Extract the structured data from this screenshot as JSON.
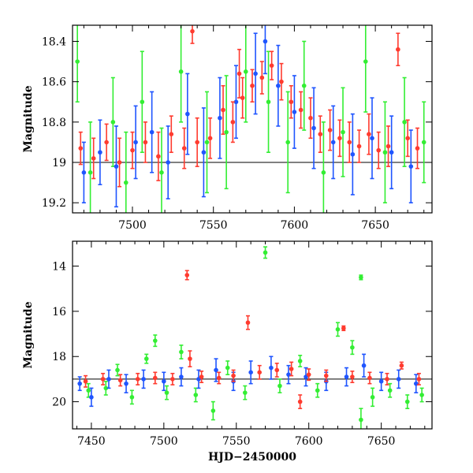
{
  "colors": {
    "red": "#ff3b2f",
    "green": "#33ee33",
    "blue": "#1f55ff",
    "axis": "#000000"
  },
  "chart_data": [
    {
      "type": "scatter",
      "panel": "top",
      "title": "",
      "xlabel": "",
      "ylabel": "Magnitude",
      "xlim": [
        7463,
        7685
      ],
      "ylim": [
        19.25,
        18.32
      ],
      "y_inverted": true,
      "reference_line_y": 19.0,
      "x_ticks": [
        7500,
        7550,
        7600,
        7650
      ],
      "x_tick_labels": [
        "7500",
        "7550",
        "7600",
        "7650"
      ],
      "show_x_tick_labels": true,
      "y_ticks": [
        18.4,
        18.6,
        18.8,
        19.0,
        19.2
      ],
      "y_tick_labels": [
        "18.4",
        "18.6",
        "18.8",
        "19",
        "19.2"
      ],
      "grid": false,
      "legend": "none",
      "series": [
        {
          "color": "red",
          "points": [
            [
              7468,
              18.93,
              0.08
            ],
            [
              7476,
              18.98,
              0.1
            ],
            [
              7484,
              18.9,
              0.09
            ],
            [
              7492,
              19.0,
              0.12
            ],
            [
              7500,
              18.94,
              0.09
            ],
            [
              7508,
              18.9,
              0.1
            ],
            [
              7516,
              18.97,
              0.12
            ],
            [
              7524,
              18.86,
              0.09
            ],
            [
              7532,
              18.93,
              0.1
            ],
            [
              7540,
              18.9,
              0.12
            ],
            [
              7548,
              18.88,
              0.1
            ],
            [
              7556,
              18.74,
              0.12
            ],
            [
              7562,
              18.8,
              0.1
            ],
            [
              7568,
              18.68,
              0.1
            ],
            [
              7574,
              18.62,
              0.08
            ],
            [
              7580,
              18.58,
              0.08
            ],
            [
              7586,
              18.52,
              0.07
            ],
            [
              7592,
              18.6,
              0.09
            ],
            [
              7598,
              18.7,
              0.08
            ],
            [
              7604,
              18.74,
              0.09
            ],
            [
              7610,
              18.78,
              0.1
            ],
            [
              7616,
              18.86,
              0.09
            ],
            [
              7622,
              18.84,
              0.1
            ],
            [
              7628,
              18.88,
              0.09
            ],
            [
              7634,
              18.9,
              0.1
            ],
            [
              7640,
              18.92,
              0.08
            ],
            [
              7646,
              18.86,
              0.1
            ],
            [
              7652,
              18.94,
              0.09
            ],
            [
              7658,
              18.92,
              0.1
            ],
            [
              7664,
              18.44,
              0.08
            ],
            [
              7670,
              18.88,
              0.09
            ],
            [
              7676,
              18.93,
              0.1
            ],
            [
              7537,
              18.35,
              0.06
            ],
            [
              7566,
              18.56,
              0.12
            ]
          ]
        },
        {
          "color": "blue",
          "points": [
            [
              7470,
              19.05,
              0.15
            ],
            [
              7480,
              18.95,
              0.16
            ],
            [
              7490,
              19.02,
              0.2
            ],
            [
              7502,
              18.9,
              0.18
            ],
            [
              7512,
              18.85,
              0.2
            ],
            [
              7522,
              19.0,
              0.18
            ],
            [
              7534,
              18.76,
              0.2
            ],
            [
              7544,
              18.95,
              0.22
            ],
            [
              7554,
              18.78,
              0.2
            ],
            [
              7564,
              18.7,
              0.18
            ],
            [
              7576,
              18.56,
              0.2
            ],
            [
              7582,
              18.4,
              0.16
            ],
            [
              7590,
              18.62,
              0.2
            ],
            [
              7600,
              18.75,
              0.18
            ],
            [
              7612,
              18.83,
              0.2
            ],
            [
              7624,
              18.9,
              0.18
            ],
            [
              7636,
              18.96,
              0.2
            ],
            [
              7648,
              18.88,
              0.2
            ],
            [
              7660,
              18.95,
              0.18
            ],
            [
              7672,
              19.02,
              0.18
            ]
          ]
        },
        {
          "color": "green",
          "points": [
            [
              7466,
              18.5,
              0.2
            ],
            [
              7474,
              19.05,
              0.25
            ],
            [
              7488,
              18.8,
              0.22
            ],
            [
              7496,
              19.1,
              0.25
            ],
            [
              7506,
              18.7,
              0.25
            ],
            [
              7518,
              19.05,
              0.22
            ],
            [
              7530,
              18.55,
              0.25
            ],
            [
              7546,
              18.9,
              0.25
            ],
            [
              7558,
              18.85,
              0.28
            ],
            [
              7570,
              18.55,
              0.25
            ],
            [
              7584,
              18.7,
              0.25
            ],
            [
              7596,
              18.9,
              0.25
            ],
            [
              7606,
              18.62,
              0.22
            ],
            [
              7618,
              19.05,
              0.25
            ],
            [
              7630,
              18.85,
              0.22
            ],
            [
              7644,
              18.5,
              0.25
            ],
            [
              7656,
              18.95,
              0.25
            ],
            [
              7668,
              18.8,
              0.22
            ],
            [
              7680,
              18.9,
              0.2
            ]
          ]
        }
      ]
    },
    {
      "type": "scatter",
      "panel": "bottom",
      "title": "",
      "xlabel": "HJD−2450000",
      "ylabel": "Magnitude",
      "xlim": [
        7437,
        7685
      ],
      "ylim": [
        21.2,
        12.9
      ],
      "y_inverted": true,
      "reference_line_y": 19.0,
      "x_ticks": [
        7450,
        7500,
        7550,
        7600,
        7650
      ],
      "x_tick_labels": [
        "7450",
        "7500",
        "7550",
        "7600",
        "7650"
      ],
      "show_x_tick_labels": true,
      "y_ticks": [
        14,
        16,
        18,
        20
      ],
      "y_tick_labels": [
        "14",
        "16",
        "18",
        "20"
      ],
      "grid": false,
      "legend": "none",
      "series": [
        {
          "color": "red",
          "points": [
            [
              7446,
              19.1,
              0.25
            ],
            [
              7458,
              19.0,
              0.25
            ],
            [
              7470,
              19.05,
              0.25
            ],
            [
              7482,
              19.0,
              0.25
            ],
            [
              7494,
              18.95,
              0.25
            ],
            [
              7506,
              19.0,
              0.25
            ],
            [
              7516,
              14.4,
              0.2
            ],
            [
              7518,
              18.1,
              0.35
            ],
            [
              7526,
              18.9,
              0.25
            ],
            [
              7538,
              18.95,
              0.25
            ],
            [
              7548,
              18.85,
              0.25
            ],
            [
              7558,
              16.5,
              0.3
            ],
            [
              7566,
              18.7,
              0.3
            ],
            [
              7578,
              18.6,
              0.3
            ],
            [
              7588,
              18.55,
              0.3
            ],
            [
              7594,
              20.0,
              0.3
            ],
            [
              7600,
              18.8,
              0.25
            ],
            [
              7612,
              18.85,
              0.25
            ],
            [
              7624,
              16.75,
              0.1
            ],
            [
              7630,
              18.9,
              0.25
            ],
            [
              7642,
              18.95,
              0.25
            ],
            [
              7654,
              19.0,
              0.25
            ],
            [
              7664,
              18.4,
              0.15
            ],
            [
              7676,
              19.0,
              0.25
            ]
          ]
        },
        {
          "color": "blue",
          "points": [
            [
              7442,
              19.2,
              0.3
            ],
            [
              7450,
              19.8,
              0.4
            ],
            [
              7462,
              19.0,
              0.4
            ],
            [
              7474,
              19.2,
              0.4
            ],
            [
              7486,
              19.0,
              0.4
            ],
            [
              7500,
              19.1,
              0.4
            ],
            [
              7512,
              18.9,
              0.4
            ],
            [
              7524,
              19.0,
              0.4
            ],
            [
              7536,
              18.6,
              0.5
            ],
            [
              7548,
              19.1,
              0.4
            ],
            [
              7560,
              18.7,
              0.5
            ],
            [
              7574,
              18.5,
              0.5
            ],
            [
              7586,
              18.8,
              0.4
            ],
            [
              7598,
              18.9,
              0.4
            ],
            [
              7612,
              19.1,
              0.4
            ],
            [
              7626,
              18.9,
              0.4
            ],
            [
              7638,
              18.4,
              0.5
            ],
            [
              7650,
              19.1,
              0.4
            ],
            [
              7662,
              19.0,
              0.4
            ],
            [
              7674,
              19.2,
              0.4
            ]
          ]
        },
        {
          "color": "green",
          "points": [
            [
              7448,
              19.5,
              0.3
            ],
            [
              7460,
              19.4,
              0.3
            ],
            [
              7468,
              18.6,
              0.25
            ],
            [
              7478,
              19.8,
              0.3
            ],
            [
              7488,
              18.1,
              0.2
            ],
            [
              7494,
              17.3,
              0.25
            ],
            [
              7502,
              19.6,
              0.3
            ],
            [
              7512,
              17.8,
              0.3
            ],
            [
              7522,
              19.7,
              0.3
            ],
            [
              7534,
              20.4,
              0.4
            ],
            [
              7544,
              18.5,
              0.3
            ],
            [
              7556,
              19.6,
              0.3
            ],
            [
              7570,
              13.4,
              0.25
            ],
            [
              7580,
              19.3,
              0.3
            ],
            [
              7594,
              18.2,
              0.25
            ],
            [
              7606,
              19.5,
              0.3
            ],
            [
              7620,
              16.8,
              0.3
            ],
            [
              7630,
              17.6,
              0.3
            ],
            [
              7636,
              14.5,
              0.1
            ],
            [
              7636,
              20.8,
              0.5
            ],
            [
              7644,
              19.8,
              0.4
            ],
            [
              7656,
              19.5,
              0.3
            ],
            [
              7668,
              20.0,
              0.3
            ],
            [
              7678,
              19.7,
              0.3
            ]
          ]
        }
      ]
    }
  ]
}
